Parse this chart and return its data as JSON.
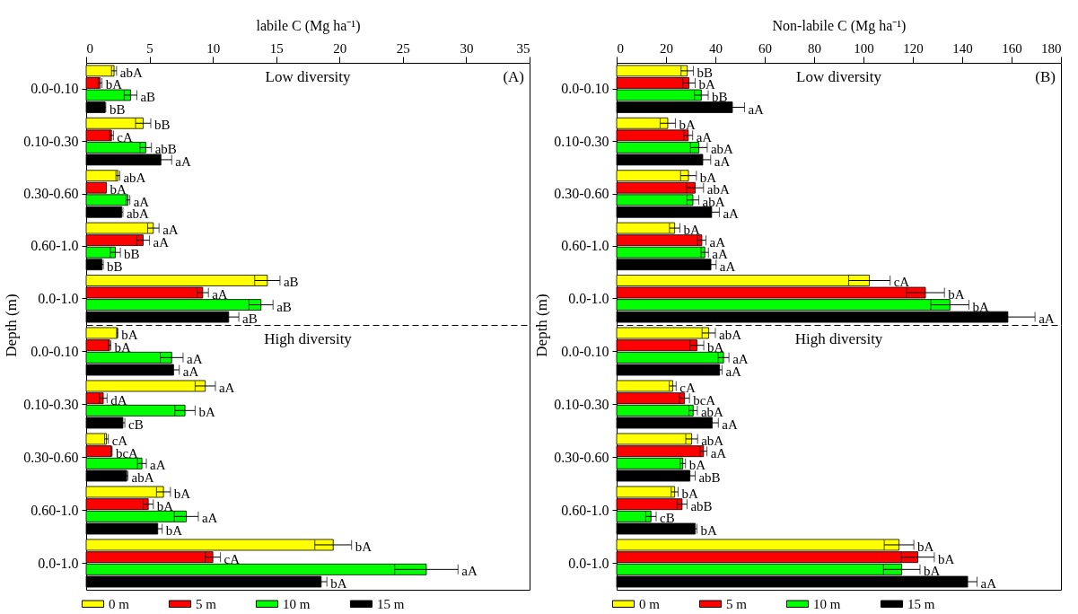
{
  "chart_data": [
    {
      "type": "bar",
      "orientation": "horizontal",
      "xlabel": "labile C (Mg ha⁻¹)",
      "ylabel": "Depth (m)",
      "annotations": [
        "Low diversity",
        "(A)"
      ],
      "categories": [
        "0.0-0.10",
        "0.10-0.30",
        "0.30-0.60",
        "0.60-1.0",
        "0.0-1.0"
      ],
      "xlim": [
        0,
        35
      ],
      "xticks": [
        0,
        5,
        10,
        15,
        20,
        25,
        30,
        35
      ],
      "grid": false,
      "legend": false,
      "series": [
        {
          "color": "#ffff00",
          "values": [
            2.2,
            4.5,
            2.5,
            5.3,
            14.3
          ],
          "errors": [
            0.2,
            0.6,
            0.15,
            0.45,
            1.0
          ],
          "value_labels": [
            "abA",
            "bB",
            "abA",
            "aA",
            "aB"
          ]
        },
        {
          "color": "#ff0000",
          "values": [
            1.1,
            2.0,
            1.6,
            4.5,
            9.2
          ],
          "errors": [
            0.15,
            0.15,
            null,
            0.5,
            0.45
          ],
          "value_labels": [
            "bA",
            "cA",
            "bA",
            "aA",
            "aA"
          ]
        },
        {
          "color": "#00ff00",
          "values": [
            3.5,
            4.7,
            3.3,
            2.3,
            13.8
          ],
          "errors": [
            0.5,
            0.45,
            0.15,
            0.4,
            0.95
          ],
          "value_labels": [
            "aB",
            "abB",
            "aA",
            "bB",
            "aB"
          ]
        },
        {
          "color": "#000000",
          "values": [
            1.5,
            5.9,
            2.8,
            1.25,
            11.25
          ],
          "errors": [
            0.05,
            0.85,
            0.1,
            0.1,
            0.8
          ],
          "value_labels": [
            "bB",
            "aA",
            "abA",
            "bB",
            "aB"
          ]
        }
      ]
    },
    {
      "type": "bar",
      "orientation": "horizontal",
      "annotations": [
        "High diversity"
      ],
      "tick_labels": "y",
      "categories": [
        "0.0-0.10",
        "0.10-0.30",
        "0.30-0.60",
        "0.60-1.0",
        "0.0-1.0"
      ],
      "xlim": [
        0,
        35
      ],
      "xticks": [
        0,
        5,
        10,
        15,
        20,
        25,
        30,
        35
      ],
      "grid": false,
      "legend": "bottom",
      "series": [
        {
          "name": "0 m",
          "color": "#ffff00",
          "values": [
            2.45,
            9.4,
            1.6,
            6.1,
            19.5
          ],
          "errors": [
            0.05,
            0.8,
            0.15,
            0.55,
            1.45
          ],
          "value_labels": [
            "bA",
            "aA",
            "cA",
            "bA",
            "bA"
          ]
        },
        {
          "name": "5 m",
          "color": "#ff0000",
          "values": [
            1.85,
            1.35,
            2.0,
            4.9,
            10.0
          ],
          "errors": [
            0.1,
            0.3,
            0.05,
            0.4,
            0.6
          ],
          "value_labels": [
            "bA",
            "dA",
            "bcA",
            "bA",
            "cA"
          ]
        },
        {
          "name": "10 m",
          "color": "#00ff00",
          "values": [
            6.75,
            7.8,
            4.4,
            7.9,
            26.85
          ],
          "errors": [
            0.9,
            0.8,
            0.35,
            0.95,
            2.5
          ],
          "value_labels": [
            "aA",
            "bA",
            "aA",
            "aA",
            "aA"
          ]
        },
        {
          "name": "15 m",
          "color": "#000000",
          "values": [
            6.9,
            2.9,
            3.2,
            5.65,
            18.55
          ],
          "errors": [
            0.45,
            0.15,
            0.1,
            0.35,
            0.45
          ],
          "value_labels": [
            "aA",
            "cB",
            "abA",
            "bA",
            "bA"
          ]
        }
      ]
    },
    {
      "type": "bar",
      "orientation": "horizontal",
      "xlabel": "Non-labile C (Mg ha⁻¹)",
      "ylabel": "Depth (m)",
      "annotations": [
        "Low diversity",
        "(B)"
      ],
      "categories": [
        "0.0-0.10",
        "0.10-0.30",
        "0.30-0.60",
        "0.60-1.0",
        "0.0-1.0"
      ],
      "xlim": [
        0,
        180
      ],
      "xticks": [
        0,
        20,
        40,
        60,
        80,
        100,
        120,
        140,
        160,
        180
      ],
      "grid": false,
      "legend": false,
      "series": [
        {
          "color": "#ffff00",
          "values": [
            28.6,
            20.7,
            29.1,
            23.5,
            102.4
          ],
          "errors": [
            2.5,
            3.1,
            3.2,
            2.1,
            8.4
          ],
          "value_labels": [
            "bB",
            "bA",
            "bA",
            "bA",
            "cA"
          ]
        },
        {
          "color": "#ff0000",
          "values": [
            29.3,
            29.0,
            31.8,
            34.5,
            125.1
          ],
          "errors": [
            2.5,
            1.8,
            3.4,
            1.7,
            7.7
          ],
          "value_labels": [
            "bA",
            "aA",
            "abA",
            "aA",
            "bA"
          ]
        },
        {
          "color": "#00ff00",
          "values": [
            34.3,
            33.3,
            30.9,
            35.7,
            135.0
          ],
          "errors": [
            2.8,
            3.4,
            2.4,
            1.5,
            7.7
          ],
          "value_labels": [
            "bB",
            "abA",
            "abA",
            "aA",
            "bA"
          ]
        },
        {
          "color": "#000000",
          "values": [
            46.9,
            34.9,
            38.5,
            38.2,
            158.5
          ],
          "errors": [
            4.9,
            3.2,
            3.1,
            2.1,
            11
          ],
          "value_labels": [
            "aA",
            "aA",
            "aA",
            "aA",
            "aA"
          ]
        }
      ]
    },
    {
      "type": "bar",
      "orientation": "horizontal",
      "annotations": [
        "High diversity"
      ],
      "tick_labels": "y",
      "categories": [
        "0.0-0.10",
        "0.10-0.30",
        "0.30-0.60",
        "0.60-1.0",
        "0.0-1.0"
      ],
      "xlim": [
        0,
        180
      ],
      "xticks": [
        0,
        20,
        40,
        60,
        80,
        100,
        120,
        140,
        160,
        180
      ],
      "grid": false,
      "legend": "bottom",
      "series": [
        {
          "name": "0 m",
          "color": "#ffff00",
          "values": [
            37.3,
            22.7,
            30.4,
            23.5,
            114.4
          ],
          "errors": [
            2.7,
            1.4,
            2.4,
            1.4,
            6.0
          ],
          "value_labels": [
            "abA",
            "cA",
            "abA",
            "bA",
            "bA"
          ]
        },
        {
          "name": "5 m",
          "color": "#ff0000",
          "values": [
            32.5,
            27.5,
            35.2,
            26.5,
            122.0
          ],
          "errors": [
            2.8,
            2.0,
            1.4,
            2.0,
            6.7
          ],
          "value_labels": [
            "bA",
            "bcA",
            "aA",
            "abB",
            "bA"
          ]
        },
        {
          "name": "10 m",
          "color": "#00ff00",
          "values": [
            43.3,
            31.0,
            26.8,
            13.9,
            115.5
          ],
          "errors": [
            2.2,
            1.7,
            1.1,
            2.1,
            7.4
          ],
          "value_labels": [
            "aA",
            "abA",
            "bA",
            "cB",
            "bA"
          ]
        },
        {
          "name": "15 m",
          "color": "#000000",
          "values": [
            41.7,
            38.7,
            29.7,
            31.8,
            142.2
          ],
          "errors": [
            1.0,
            2.5,
            2.1,
            0.7,
            3.8
          ],
          "value_labels": [
            "aA",
            "aA",
            "abB",
            "bA",
            "aA"
          ]
        }
      ]
    }
  ]
}
